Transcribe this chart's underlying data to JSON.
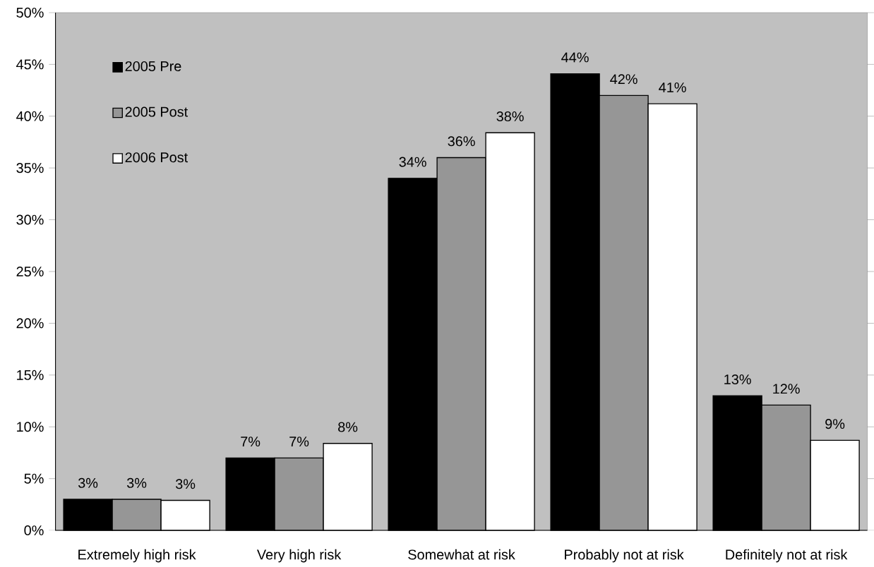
{
  "chart_data": {
    "type": "bar",
    "categories": [
      "Extremely high risk",
      "Very high risk",
      "Somewhat at risk",
      "Probably not at risk",
      "Definitely not at risk"
    ],
    "series": [
      {
        "name": "2005 Pre",
        "color": "#000000",
        "values": [
          3.0,
          7.0,
          34.0,
          44.1,
          13.0
        ],
        "value_labels": [
          "3%",
          "7%",
          "34%",
          "44%",
          "13%"
        ]
      },
      {
        "name": "2005 Post",
        "color": "#969696",
        "values": [
          3.0,
          7.0,
          36.0,
          42.0,
          12.1
        ],
        "value_labels": [
          "3%",
          "7%",
          "36%",
          "42%",
          "12%"
        ]
      },
      {
        "name": "2006 Post",
        "color": "#ffffff",
        "values": [
          2.9,
          8.4,
          38.4,
          41.2,
          8.7
        ],
        "value_labels": [
          "3%",
          "8%",
          "38%",
          "41%",
          "9%"
        ]
      }
    ],
    "ylim": [
      0,
      50
    ],
    "yticks": [
      {
        "value": 0,
        "label": "0%"
      },
      {
        "value": 5,
        "label": "5%"
      },
      {
        "value": 10,
        "label": "10%"
      },
      {
        "value": 15,
        "label": "15%"
      },
      {
        "value": 20,
        "label": "20%"
      },
      {
        "value": 25,
        "label": "25%"
      },
      {
        "value": 30,
        "label": "30%"
      },
      {
        "value": 35,
        "label": "35%"
      },
      {
        "value": 40,
        "label": "40%"
      },
      {
        "value": 45,
        "label": "45%"
      },
      {
        "value": 50,
        "label": "50%"
      }
    ],
    "grid": false,
    "legend": "top left"
  }
}
